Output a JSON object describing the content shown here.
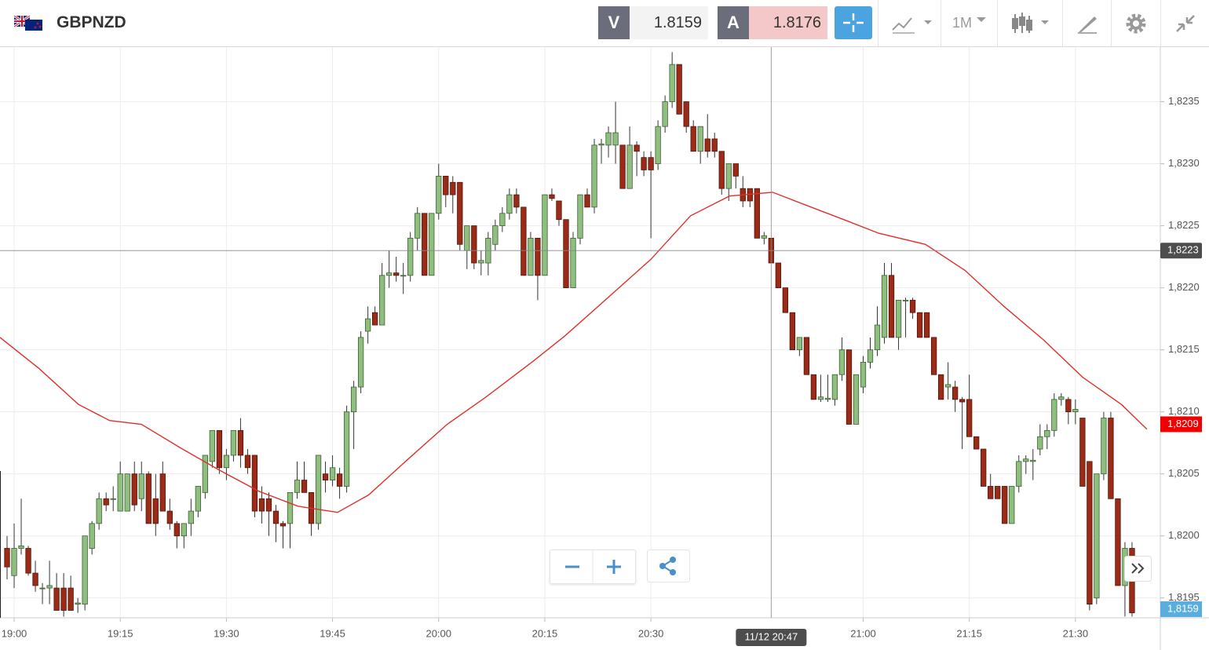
{
  "toolbar": {
    "symbol": "GBPNZD",
    "quotes": [
      {
        "label": "V",
        "value": 1.8159
      },
      {
        "label": "A",
        "value": 1.8176
      }
    ],
    "timeframe": "1M"
  },
  "chart_data": {
    "type": "candlestick",
    "x": [
      -1,
      0,
      1,
      2,
      3,
      4,
      5,
      6,
      7,
      8,
      9,
      10,
      11,
      12,
      13,
      14,
      15,
      16,
      17,
      18,
      19,
      20,
      21,
      22,
      23,
      24,
      25,
      26,
      27,
      28,
      29,
      30,
      31,
      32,
      33,
      34,
      35,
      36,
      37,
      38,
      39,
      40,
      41,
      42,
      43,
      44,
      45,
      46,
      47,
      48,
      49,
      50,
      51,
      52,
      53,
      54,
      55,
      56,
      57,
      58,
      59,
      60,
      61,
      62,
      63,
      64,
      65,
      66,
      67,
      68,
      69,
      70,
      71,
      72,
      73,
      74,
      75,
      76,
      77,
      78,
      79,
      80,
      81,
      82,
      83,
      84,
      85,
      86,
      87,
      88,
      89,
      90,
      91,
      92,
      93,
      94,
      95,
      96,
      97,
      98,
      99,
      100,
      101,
      102,
      103,
      104,
      105,
      106,
      107,
      108,
      109,
      110,
      111,
      112,
      113,
      114,
      115,
      116,
      117,
      118,
      119,
      120,
      121,
      122,
      123,
      124,
      125,
      126,
      127,
      128,
      129,
      130,
      131,
      132,
      133,
      134,
      135,
      136,
      137,
      138,
      139,
      140,
      141,
      142,
      143,
      144,
      145,
      146,
      147,
      148,
      149,
      150,
      151,
      152,
      153,
      154,
      155,
      156,
      157,
      158
    ],
    "open": [
      1.8199,
      1.81968,
      1.8199,
      1.8199,
      1.8197,
      1.81958,
      1.81958,
      1.81958,
      1.81958,
      1.81958,
      1.81945,
      1.81945,
      1.8199,
      1.8201,
      1.8203,
      1.8203,
      1.8202,
      1.8202,
      1.8205,
      1.8203,
      1.8205,
      1.8203,
      1.8205,
      1.8202,
      1.8201,
      1.82,
      1.8201,
      1.8202,
      1.82035,
      1.8206,
      1.82085,
      1.82055,
      1.82065,
      1.82085,
      1.82065,
      1.82065,
      1.8203,
      1.8203,
      1.8202,
      1.8201,
      1.8201,
      1.82035,
      1.82045,
      1.82035,
      1.8201,
      1.8205,
      1.82045,
      1.8205,
      1.8204,
      1.821,
      1.8212,
      1.82165,
      1.8218,
      1.8217,
      1.8221,
      1.82212,
      1.8221,
      1.8221,
      1.8224,
      1.8226,
      1.8221,
      1.8226,
      1.8229,
      1.82285,
      1.82285,
      1.8223,
      1.8225,
      1.8222,
      1.8222,
      1.82235,
      1.8225,
      1.8226,
      1.82275,
      1.82265,
      1.8221,
      1.8224,
      1.8221,
      1.82275,
      1.8227,
      1.82255,
      1.822,
      1.8224,
      1.82275,
      1.82265,
      1.82315,
      1.82315,
      1.82315,
      1.82315,
      1.8228,
      1.82315,
      1.82305,
      1.82305,
      1.823,
      1.8233,
      1.8235,
      1.8238,
      1.8235,
      1.8233,
      1.8231,
      1.8232,
      1.8232,
      1.8231,
      1.8228,
      1.823,
      1.8228,
      1.8228,
      1.8228,
      1.8224,
      1.8224,
      1.8222,
      1.822,
      1.8218,
      1.8215,
      1.8216,
      1.8213,
      1.8211,
      1.8211,
      1.8211,
      1.8213,
      1.8215,
      1.8209,
      1.8212,
      1.8214,
      1.8215,
      1.8216,
      1.8221,
      1.8216,
      1.8219,
      1.8219,
      1.8218,
      1.8218,
      1.8216,
      1.8213,
      1.8212,
      1.8212,
      1.8211,
      1.8211,
      1.8208,
      1.8207,
      1.8204,
      1.8204,
      1.8204,
      1.8201,
      1.8204,
      1.8206,
      1.8206,
      1.8207,
      1.8208,
      1.82085,
      1.8211,
      1.8211,
      1.821,
      1.82095,
      1.8206,
      1.8195,
      1.8205,
      1.82095,
      1.8203,
      1.8196,
      1.8199
    ],
    "high": [
      1.82,
      1.8201,
      1.8203,
      1.81992,
      1.8198,
      1.81962,
      1.8198,
      1.8197,
      1.8197,
      1.81968,
      1.8195,
      1.82,
      1.82012,
      1.82035,
      1.82035,
      1.8204,
      1.8206,
      1.8205,
      1.8206,
      1.8206,
      1.82052,
      1.8205,
      1.8206,
      1.8203,
      1.82012,
      1.8201,
      1.8203,
      1.8204,
      1.82065,
      1.82085,
      1.82085,
      1.8207,
      1.82085,
      1.82095,
      1.8207,
      1.82065,
      1.8204,
      1.82035,
      1.82025,
      1.82012,
      1.82035,
      1.8206,
      1.8206,
      1.82035,
      1.82065,
      1.8206,
      1.82065,
      1.82055,
      1.82105,
      1.82125,
      1.82165,
      1.82185,
      1.82185,
      1.8222,
      1.8223,
      1.82225,
      1.8222,
      1.82245,
      1.82265,
      1.8226,
      1.8226,
      1.823,
      1.8229,
      1.8229,
      1.82285,
      1.8225,
      1.8225,
      1.8223,
      1.82245,
      1.82255,
      1.82265,
      1.8228,
      1.8228,
      1.82265,
      1.82245,
      1.8224,
      1.82275,
      1.8228,
      1.8227,
      1.82255,
      1.82245,
      1.82275,
      1.8228,
      1.8232,
      1.8232,
      1.8233,
      1.8235,
      1.82315,
      1.8233,
      1.82318,
      1.8231,
      1.8231,
      1.82335,
      1.82355,
      1.8239,
      1.8238,
      1.8235,
      1.82335,
      1.8233,
      1.8234,
      1.82325,
      1.8231,
      1.823,
      1.823,
      1.8229,
      1.8228,
      1.8228,
      1.82245,
      1.8224,
      1.8222,
      1.822,
      1.8218,
      1.8216,
      1.8216,
      1.8213,
      1.8213,
      1.8213,
      1.8213,
      1.8216,
      1.8215,
      1.8213,
      1.82145,
      1.8216,
      1.82185,
      1.8222,
      1.8222,
      1.8219,
      1.82192,
      1.82192,
      1.8218,
      1.8218,
      1.8216,
      1.8213,
      1.8214,
      1.82125,
      1.82112,
      1.8213,
      1.8208,
      1.8207,
      1.8205,
      1.8204,
      1.8204,
      1.8204,
      1.82065,
      1.82065,
      1.8207,
      1.8209,
      1.8209,
      1.82115,
      1.82115,
      1.82112,
      1.8211,
      1.82095,
      1.8206,
      1.8205,
      1.821,
      1.821,
      1.8203,
      1.81995,
      1.81995
    ],
    "low": [
      1.81965,
      1.81958,
      1.81985,
      1.81968,
      1.81955,
      1.81945,
      1.81945,
      1.8194,
      1.81935,
      1.8194,
      1.81938,
      1.8194,
      1.81985,
      1.82005,
      1.8202,
      1.8202,
      1.8202,
      1.8202,
      1.8202,
      1.8202,
      1.8201,
      1.82,
      1.8202,
      1.82005,
      1.8199,
      1.8199,
      1.82,
      1.82015,
      1.8203,
      1.82055,
      1.8205,
      1.82045,
      1.8206,
      1.82055,
      1.8205,
      1.82015,
      1.8201,
      1.82,
      1.81995,
      1.8199,
      1.8199,
      1.8203,
      1.82035,
      1.82,
      1.82005,
      1.82035,
      1.8204,
      1.8203,
      1.82035,
      1.8207,
      1.82115,
      1.82155,
      1.8217,
      1.8217,
      1.822,
      1.82205,
      1.82195,
      1.82205,
      1.8223,
      1.8221,
      1.8221,
      1.82255,
      1.82265,
      1.8226,
      1.8223,
      1.82215,
      1.82215,
      1.8221,
      1.8221,
      1.8223,
      1.82245,
      1.82255,
      1.8226,
      1.8221,
      1.8221,
      1.8219,
      1.8221,
      1.8227,
      1.8225,
      1.822,
      1.822,
      1.82235,
      1.82265,
      1.8226,
      1.823,
      1.82305,
      1.823,
      1.8228,
      1.8228,
      1.8229,
      1.8229,
      1.8224,
      1.82295,
      1.82325,
      1.82345,
      1.8234,
      1.82325,
      1.8231,
      1.823,
      1.82305,
      1.82305,
      1.82275,
      1.8227,
      1.8228,
      1.82265,
      1.82265,
      1.8224,
      1.82235,
      1.8222,
      1.822,
      1.8218,
      1.8215,
      1.82145,
      1.8213,
      1.8211,
      1.82108,
      1.82108,
      1.82105,
      1.82125,
      1.8209,
      1.8209,
      1.82115,
      1.82135,
      1.82145,
      1.82155,
      1.8216,
      1.8215,
      1.8216,
      1.82175,
      1.8216,
      1.8216,
      1.8213,
      1.8211,
      1.8211,
      1.821,
      1.8207,
      1.8208,
      1.8207,
      1.8204,
      1.8203,
      1.8203,
      1.8201,
      1.8201,
      1.82035,
      1.8205,
      1.82045,
      1.82065,
      1.8207,
      1.8208,
      1.82105,
      1.8209,
      1.8209,
      1.8204,
      1.8194,
      1.81945,
      1.82045,
      1.8203,
      1.8196,
      1.81935,
      1.81935
    ],
    "close": [
      1.81975,
      1.8199,
      1.81992,
      1.8197,
      1.8196,
      1.81958,
      1.8196,
      1.8194,
      1.8194,
      1.8194,
      1.81946,
      1.82,
      1.8201,
      1.8203,
      1.82025,
      1.8203,
      1.8205,
      1.8205,
      1.82025,
      1.8205,
      1.8201,
      1.8201,
      1.8202,
      1.8201,
      1.82,
      1.8201,
      1.8202,
      1.8204,
      1.82065,
      1.82085,
      1.82055,
      1.82065,
      1.82085,
      1.82065,
      1.82055,
      1.8202,
      1.8202,
      1.8202,
      1.8201,
      1.82008,
      1.82035,
      1.82045,
      1.82035,
      1.8201,
      1.82065,
      1.82045,
      1.82055,
      1.8204,
      1.821,
      1.8212,
      1.8216,
      1.82175,
      1.8217,
      1.8221,
      1.82212,
      1.8221,
      1.8221,
      1.8224,
      1.8226,
      1.8221,
      1.8226,
      1.8229,
      1.82275,
      1.82275,
      1.82235,
      1.8225,
      1.8222,
      1.82222,
      1.8224,
      1.8225,
      1.8226,
      1.82275,
      1.82265,
      1.8221,
      1.8224,
      1.8221,
      1.82275,
      1.82272,
      1.82255,
      1.822,
      1.8224,
      1.82275,
      1.82265,
      1.82315,
      1.82316,
      1.82325,
      1.82325,
      1.8228,
      1.82315,
      1.8231,
      1.82295,
      1.82295,
      1.8233,
      1.8235,
      1.8238,
      1.8234,
      1.8233,
      1.8231,
      1.8233,
      1.8231,
      1.8231,
      1.8228,
      1.823,
      1.8229,
      1.8227,
      1.8227,
      1.8224,
      1.82242,
      1.8222,
      1.822,
      1.8218,
      1.8215,
      1.8216,
      1.8213,
      1.8211,
      1.82112,
      1.82111,
      1.8213,
      1.8215,
      1.8209,
      1.8213,
      1.8214,
      1.8215,
      1.8217,
      1.8221,
      1.8216,
      1.8219,
      1.8219,
      1.8218,
      1.8216,
      1.8216,
      1.8213,
      1.8211,
      1.82122,
      1.8211,
      1.82108,
      1.8208,
      1.8207,
      1.8204,
      1.8203,
      1.8203,
      1.8201,
      1.8204,
      1.8206,
      1.82062,
      1.82061,
      1.8208,
      1.82085,
      1.8211,
      1.82112,
      1.821,
      1.82102,
      1.8204,
      1.81945,
      1.8205,
      1.82095,
      1.8203,
      1.8196,
      1.8199,
      1.81938
    ],
    "up_color": "#8fbf7e",
    "down_color": "#9b2a17",
    "xlim": [
      -2,
      162
    ],
    "xticks": [
      {
        "value": 0,
        "label": "19:00"
      },
      {
        "value": 15,
        "label": "19:15"
      },
      {
        "value": 30,
        "label": "19:30"
      },
      {
        "value": 45,
        "label": "19:45"
      },
      {
        "value": 60,
        "label": "20:00"
      },
      {
        "value": 75,
        "label": "20:15"
      },
      {
        "value": 90,
        "label": "20:30"
      },
      {
        "value": 120,
        "label": "21:00"
      },
      {
        "value": 135,
        "label": "21:15"
      },
      {
        "value": 150,
        "label": "21:30"
      }
    ],
    "ylim": [
      1.81934,
      1.82394
    ],
    "yticks": [
      {
        "value": 1.8195,
        "label": "1,8195"
      },
      {
        "value": 1.82,
        "label": "1,8200"
      },
      {
        "value": 1.8205,
        "label": "1,8205"
      },
      {
        "value": 1.821,
        "label": "1,8210"
      },
      {
        "value": 1.8215,
        "label": "1,8215"
      },
      {
        "value": 1.822,
        "label": "1,8220"
      },
      {
        "value": 1.8225,
        "label": "1,8225"
      },
      {
        "value": 1.823,
        "label": "1,8230"
      },
      {
        "value": 1.8235,
        "label": "1,8235"
      }
    ],
    "grid": true,
    "overlays": [
      {
        "type": "line",
        "color": "#e0302a",
        "x": [
          -2,
          3.5,
          9.1,
          13.5,
          18,
          23.5,
          29,
          34.6,
          40.1,
          45.7,
          50.1,
          55.7,
          61.2,
          66.7,
          73.4,
          77.8,
          84.5,
          90,
          95.6,
          101.1,
          107.2,
          112.2,
          117.7,
          122.2,
          128.8,
          134.4,
          139.9,
          145.5,
          151,
          156.5,
          160.1
        ],
        "values": [
          1.8216,
          1.82135,
          1.82106,
          1.82093,
          1.8209,
          1.82071,
          1.82053,
          1.82036,
          1.82024,
          1.82019,
          1.82033,
          1.82062,
          1.8209,
          1.82112,
          1.82141,
          1.82161,
          1.82195,
          1.82223,
          1.82258,
          1.82274,
          1.82277,
          1.82266,
          1.82254,
          1.82244,
          1.82235,
          1.82214,
          1.82185,
          1.82158,
          1.82128,
          1.82106,
          1.82086
        ]
      }
    ],
    "crosshair": {
      "x": {
        "value": 107,
        "label": "11/12 20:47"
      },
      "y": {
        "value": 1.8223,
        "label": "1,8223"
      }
    },
    "price_markers": [
      {
        "value": 1.8209,
        "label": "1,8209",
        "color": "#f00000"
      },
      {
        "value": 1.8159,
        "label": "1,8159",
        "color": "#5aaede"
      }
    ]
  }
}
